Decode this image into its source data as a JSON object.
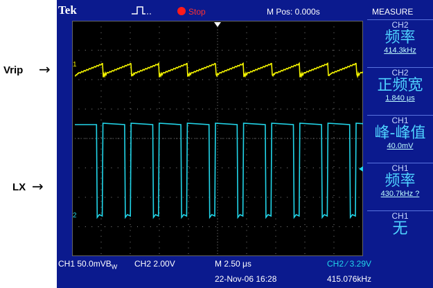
{
  "outer_labels": {
    "vrip": "Vrip",
    "lx": "LX",
    "arrow": "→"
  },
  "topbar": {
    "brand": "Tek",
    "run_state": "Stop",
    "m_pos": "M Pos: 0.000s",
    "measure_title": "MEASURE"
  },
  "markers": {
    "ch1": "1",
    "ch2": "2"
  },
  "measurements": [
    {
      "channel": "CH2",
      "name": "频率",
      "value": "414.3kHz"
    },
    {
      "channel": "CH2",
      "name": "正频宽",
      "value": "1.840 μs"
    },
    {
      "channel": "CH1",
      "name": "峰-峰值",
      "value": "40.0mV"
    },
    {
      "channel": "CH1",
      "name": "频率",
      "value": "430.7kHz ?"
    },
    {
      "channel": "CH1",
      "name": "无",
      "value": ""
    }
  ],
  "bottombar": {
    "ch1_scale": "CH1  50.0mVB",
    "bw_limit": "W",
    "ch2_scale": "CH2  2.00V",
    "timebase": "M 2.50 μs",
    "trigger": "CH2  ∕  3.29V",
    "date": "22-Nov-06 16:28",
    "trigger_freq": "415.076kHz"
  },
  "colors": {
    "ch1": "#f2f200",
    "ch2": "#22d6ea",
    "frame": "#0b1a8e",
    "grid_dot": "#8a8a8a",
    "stop": "#ff1a1a"
  }
}
